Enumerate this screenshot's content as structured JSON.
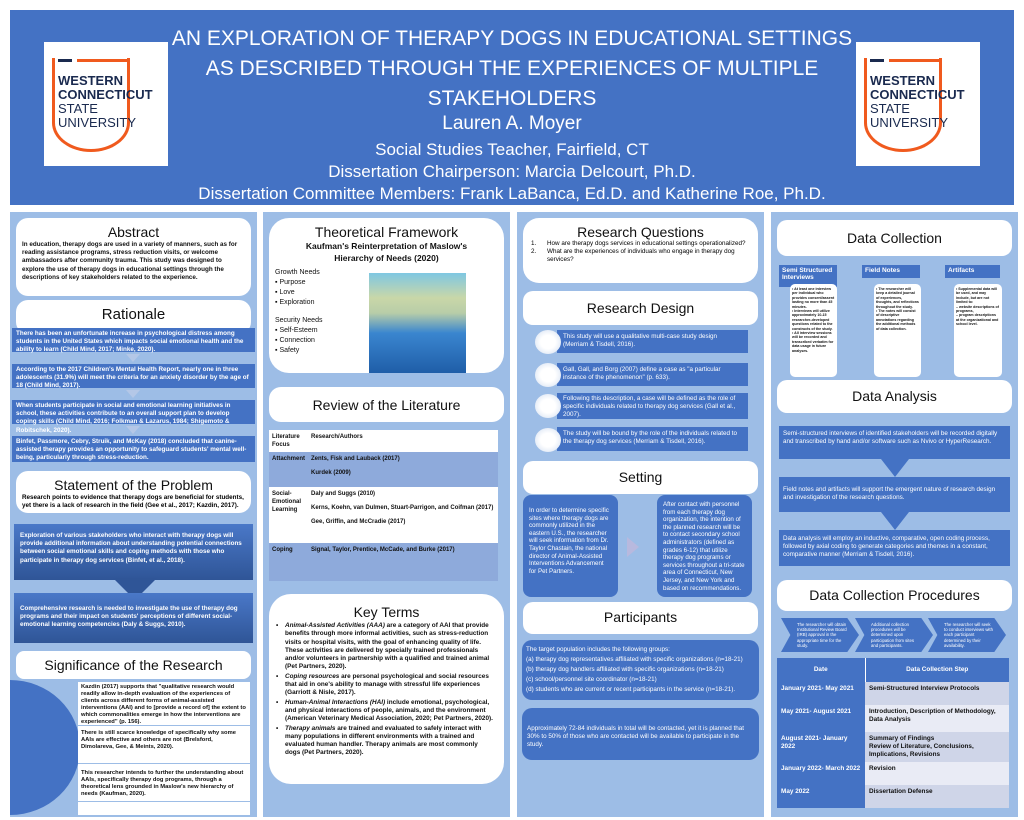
{
  "header": {
    "title_lines": [
      "AN EXPLORATION OF THERAPY DOGS IN EDUCATIONAL SETTINGS",
      "AS DESCRIBED THROUGH THE EXPERIENCES OF MULTIPLE",
      "STAKEHOLDERS"
    ],
    "author": "Lauren A. Moyer",
    "position": "Social Studies Teacher, Fairfield, CT",
    "chair": "Dissertation Chairperson: Marcia Delcourt, Ph.D.",
    "committee": "Dissertation Committee Members: Frank LaBanca, Ed.D. and Katherine Roe, Ph.D.",
    "logo_text": [
      "WESTERN",
      "CONNECTICUT",
      "STATE",
      "UNIVERSITY"
    ],
    "colors": {
      "header": "#4472c4",
      "panel": "#9dbde6",
      "logo_orange": "#f05a1e",
      "logo_navy": "#1a2a4f"
    }
  },
  "abstract": {
    "title": "Abstract",
    "text": "In education, therapy dogs are used in a variety of manners, such as for reading assistance programs, stress reduction visits, or welcome ambassadors after community trauma. This study was designed to explore the use of therapy dogs in educational settings through the descriptions of key stakeholders related to the experience."
  },
  "rationale": {
    "title": "Rationale",
    "items": [
      "There has been an unfortunate increase in psychological distress among students in the United States which impacts social emotional health and the ability to learn (Child Mind, 2017; Minke, 2020).",
      "According to the 2017 Children's Mental Health Report, nearly one in three adolescents (31.9%) will meet the criteria for an anxiety disorder by the age of 18 (Child Mind, 2017).",
      "When students participate in social and emotional learning initiatives in school, these activities contribute to an overall support plan to develop coping skills (Child Mind, 2016; Folkman & Lazarus, 1984; Shigemoto & Robitschek, 2020).",
      "Binfet, Passmore, Cebry, Struik, and McKay (2018) concluded that canine-assisted therapy provides an opportunity to safeguard students' mental well-being, particularly through stress-reduction."
    ]
  },
  "problem": {
    "title": "Statement of the Problem",
    "text": "Research points to evidence that therapy dogs are beneficial for students, yet there is a lack of research in the field (Gee et al., 2017; Kazdin, 2017).",
    "box1": "Exploration of various stakeholders who interact with therapy dogs will provide additional information about understanding potential connections between social emotional skills and coping methods with those who participate in therapy dog services (Binfet, et al., 2018).",
    "box2": "Comprehensive research is needed to investigate the use of therapy dog programs and their impact on students' perceptions of different social-emotional learning competencies (Daly & Suggs, 2010)."
  },
  "significance": {
    "title": "Significance of the Research",
    "items": [
      "Kazdin (2017) supports that \"qualitative research would readily allow in-depth evaluation of the experiences of clients across different forms of animal-assisted interventions (AAI) and to [provide a record of] the extent to which commonalities emerge in how the interventions are experienced\" (p. 156).",
      "There is still scarce knowledge of specifically why some AAIs are effective and others are not (Brelsford, Dimolareva, Gee, & Meints, 2020).",
      "This researcher intends to further the understanding about AAIs, specifically therapy dog programs, through a theoretical lens grounded in Maslow's new hierarchy of needs (Kaufman, 2020)."
    ]
  },
  "framework": {
    "title": "Theoretical Framework",
    "subtitle": "Kaufman's Reinterpretation of Maslow's Hierarchy of Needs (2020)",
    "growth_label": "Growth Needs",
    "growth": [
      "Purpose",
      "Love",
      "Exploration"
    ],
    "security_label": "Security Needs",
    "security": [
      "Self-Esteem",
      "Connection",
      "Safety"
    ]
  },
  "literature": {
    "title": "Review of the Literature",
    "headers": [
      "Literature Focus",
      "Research/Authors"
    ],
    "rows": [
      {
        "focus": "Attachment",
        "authors": [
          "Zents, Fisk and Lauback (2017)",
          "Kurdek (2009)"
        ]
      },
      {
        "focus": "Social-Emotional Learning",
        "authors": [
          "Daly and Suggs (2010)",
          "Kerns, Koehn, van Dulmen, Stuart-Parrigon, and Coifman (2017)",
          "Gee, Griffin, and McCradie (2017)"
        ]
      },
      {
        "focus": "Coping",
        "authors": [
          "Signal, Taylor, Prentice, McCade, and Burke (2017)"
        ]
      }
    ]
  },
  "key_terms": {
    "title": "Key Terms",
    "items": [
      {
        "term": "Animal-Assisted Activities (AAA)",
        "def": " are a category of AAI that provide benefits through more informal activities, such as stress-reduction visits or hospital visits, with the goal of enhancing quality of life. These activities are delivered by specially trained professionals and/or volunteers in partnership with a qualified and trained animal (Pet Partners, 2020)."
      },
      {
        "term": "Coping resources",
        "def": " are personal psychological and social resources that aid in one's ability to manage with stressful life experiences (Garriott & Nisle, 2017)."
      },
      {
        "term": "Human-Animal Interactions (HAI)",
        "def": " include emotional, psychological, and physical interactions of people, animals, and the environment (American Veterinary Medical Association, 2020; Pet Partners, 2020)."
      },
      {
        "term": "Therapy animals",
        "def": " are trained and evaluated to safely interact with many populations in different environments with a trained and evaluated human handler.  Therapy animals are most commonly dogs (Pet Partners, 2020)."
      }
    ]
  },
  "questions": {
    "title": "Research Questions",
    "items": [
      "1.",
      "How are therapy dogs services in educational settings operationalized?",
      "2.",
      "What are the experiences of individuals who engage in therapy dog services?"
    ]
  },
  "design": {
    "title": "Research Design",
    "items": [
      "This study will use a qualitative multi-case study design (Merriam & Tisdell, 2016).",
      "Gall, Gall, and Borg (2007) define a case as \"a particular instance of the phenomenon\" (p. 633).",
      "Following this description, a case will be defined as the role of specific individuals related to therapy dog services (Gall et al., 2007).",
      "The study will be bound by the role of the individuals related to the therapy dog services (Merriam & Tisdell, 2016)."
    ]
  },
  "setting": {
    "title": "Setting",
    "left": "In order to determine specific sites where therapy dogs are commonly utilized in the eastern U.S., the researcher will seek information from Dr. Taylor Chastain, the national director of Animal-Assisted Interventions Advancement for Pet Partners.",
    "right": "After contact with personnel from each therapy dog organization, the intention of the planned research will be to contact secondary school administrators (defined as grades 6-12) that utilize therapy dog programs or services throughout a tri-state area of Connecticut, New Jersey, and New York and based on recommendations."
  },
  "participants": {
    "title": "Participants",
    "intro": "The target population includes the following groups:",
    "groups": [
      "(a) therapy dog representatives affiliated with specific organizations (n=18-21)",
      "(b) therapy dog handlers affiliated with specific organizations (n=18-21)",
      "(c) school/personnel site coordinator (n=18-21)",
      "(d) students who are current or recent participants in the service (n=18-21)."
    ],
    "note": "Approximately 72-84 individuals in total will be contacted, yet it is planned that 30% to 50% of those who are contacted will be available to participate in the study."
  },
  "data_collection": {
    "title": "Data Collection",
    "columns": [
      {
        "label": "Semi Structured Interviews",
        "items": [
          "At least one interview per individual who provides consent/assent lasting no more than 45 minutes.",
          "Interviews will utilize approximately 10-15 researcher-developed questions related to the constructs of the study.",
          "All interview sessions will be recorded and transcribed verbatim for data usage in future analyses."
        ]
      },
      {
        "label": "Field Notes",
        "items": [
          "The researcher will keep a detailed journal of experiences, thoughts, and reflections throughout the study.",
          "The notes will consist of descriptive annotations regarding the additional methods of data collection."
        ]
      },
      {
        "label": "Artifacts",
        "items": [
          "Supplemental data will be used, and may include, but are not limited to:",
          "website descriptions of programs,",
          "program descriptions at the organizational and school level."
        ]
      }
    ]
  },
  "data_analysis": {
    "title": "Data Analysis",
    "items": [
      "Semi-structured interviews of identified stakeholders will be recorded digitally and transcribed by hand and/or software such as Nvivo or HyperResearch.",
      "Field notes and artifacts will support the emergent nature of research design and investigation of the research questions.",
      "Data analysis will employ an inductive, comparative, open coding process, followed by axial coding to generate categories and themes in a constant, comparative manner (Merriam & Tisdell, 2016)."
    ]
  },
  "procedures": {
    "title": "Data Collection Procedures",
    "steps": [
      "The researcher will obtain Institutional Review Board (IRB) approval in the appropriate time for the study.",
      "Additional collection procedures will be determined upon participation from sites and participants.",
      "The researcher will seek to conduct interviews with each participant determined by their availability."
    ],
    "headers": [
      "Date",
      "Data Collection Step"
    ],
    "rows": [
      [
        "January 2021- May 2021",
        "Semi-Structured Interview Protocols"
      ],
      [
        "May 2021- August 2021",
        "Introduction, Description of Methodology, Data Analysis"
      ],
      [
        "August 2021- January 2022",
        "Summary of Findings\nReview of Literature, Conclusions, Implications, Revisions"
      ],
      [
        "January 2022- March 2022",
        "Revision"
      ],
      [
        "May 2022",
        "Dissertation Defense"
      ]
    ]
  }
}
